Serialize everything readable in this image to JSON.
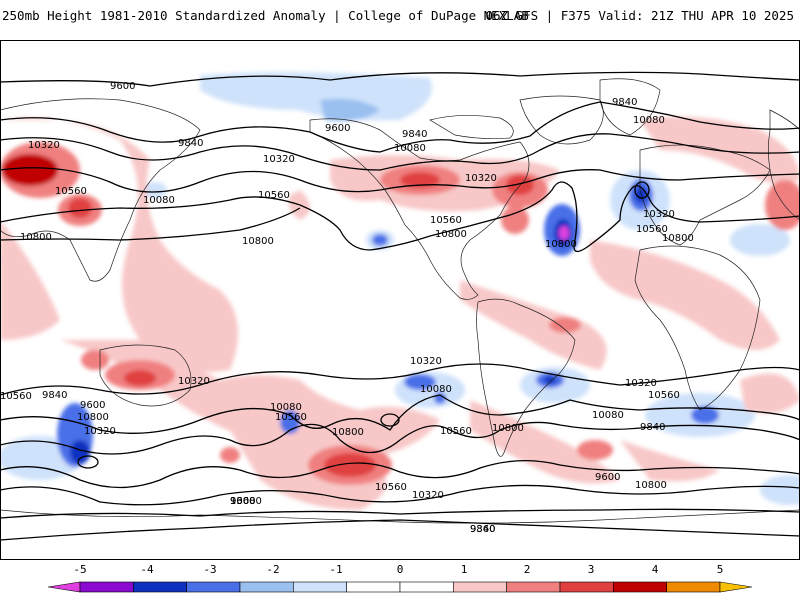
{
  "header": {
    "left_title": "250mb Height 1981-2010 Standardized Anomaly | College of DuPage NEXLAB",
    "right_title": "06Z GFS | F375 Valid: 21Z THU APR 10 2025"
  },
  "contour_labels": [
    "9600",
    "10320",
    "9840",
    "10560",
    "10080",
    "10800",
    "10320",
    "10560",
    "10800",
    "9600",
    "9840",
    "10080",
    "10320",
    "10560",
    "10800",
    "9840",
    "10080",
    "10320",
    "10560",
    "10800",
    "10800",
    "10560",
    "10320",
    "9840",
    "9600",
    "10800",
    "10320",
    "10080",
    "10560",
    "10800",
    "10320",
    "10080",
    "10560",
    "10800",
    "10320",
    "10560",
    "10080",
    "9840",
    "9600",
    "10800",
    "10560",
    "10320",
    "10080",
    "9840",
    "9600",
    "9360",
    "9360"
  ],
  "colorbar": {
    "ticks": [
      "-5",
      "-4",
      "-3",
      "-2",
      "-1",
      "0",
      "1",
      "2",
      "3",
      "4",
      "5"
    ],
    "colors": [
      "#e040e0",
      "#8a0ad0",
      "#1030c0",
      "#4a70e8",
      "#9ac0f0",
      "#cfe2fb",
      "#ffffff",
      "#ffffff",
      "#f8c8c8",
      "#f08080",
      "#e04040",
      "#c00000",
      "#f08a00",
      "#f8c000"
    ]
  }
}
